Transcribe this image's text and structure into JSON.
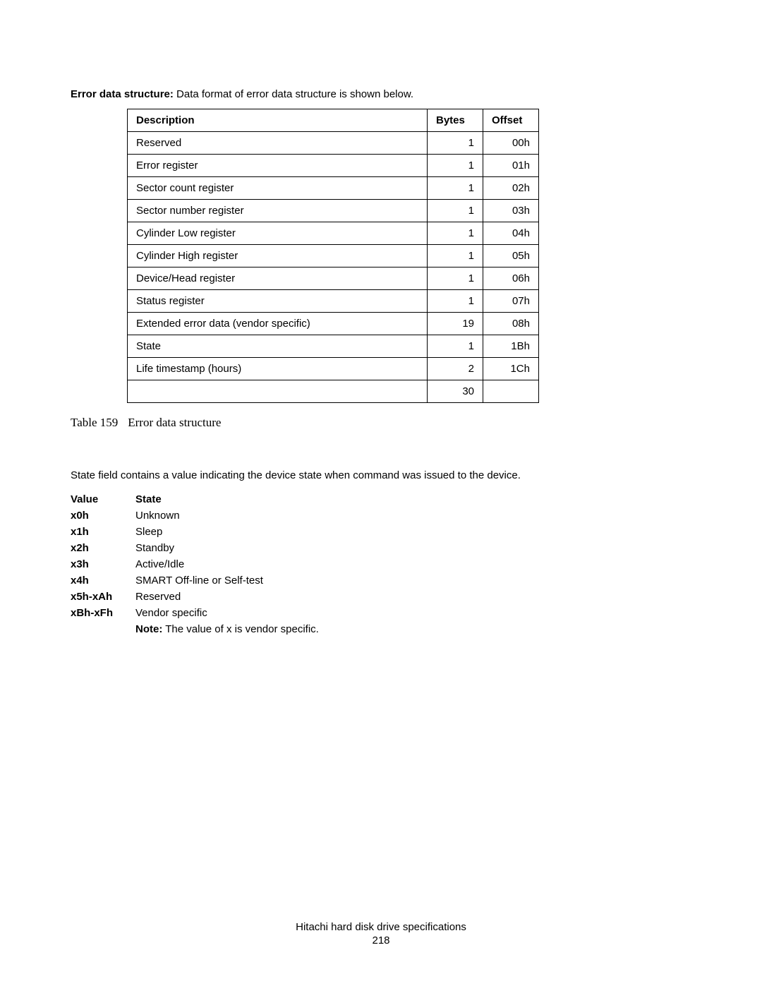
{
  "intro": {
    "label": "Error data structure:",
    "text": " Data format of error data structure is shown below."
  },
  "table": {
    "headers": {
      "desc": "Description",
      "bytes": "Bytes",
      "offset": "Offset"
    },
    "rows": [
      {
        "desc": "Reserved",
        "bytes": "1",
        "offset": "00h"
      },
      {
        "desc": "Error register",
        "bytes": "1",
        "offset": "01h"
      },
      {
        "desc": "Sector count register",
        "bytes": "1",
        "offset": "02h"
      },
      {
        "desc": "Sector number register",
        "bytes": "1",
        "offset": "03h"
      },
      {
        "desc": "Cylinder Low register",
        "bytes": "1",
        "offset": "04h"
      },
      {
        "desc": "Cylinder High register",
        "bytes": "1",
        "offset": "05h"
      },
      {
        "desc": "Device/Head register",
        "bytes": "1",
        "offset": "06h"
      },
      {
        "desc": "Status register",
        "bytes": "1",
        "offset": "07h"
      },
      {
        "desc": "Extended error data (vendor specific)",
        "bytes": "19",
        "offset": "08h"
      },
      {
        "desc": "State",
        "bytes": "1",
        "offset": "1Bh"
      },
      {
        "desc": "Life timestamp (hours)",
        "bytes": "2",
        "offset": "1Ch"
      },
      {
        "desc": "",
        "bytes": "30",
        "offset": ""
      }
    ]
  },
  "caption": {
    "num": "Table 159",
    "text": "Error data structure"
  },
  "stateintro": "State field contains a value indicating the device state when command was issued to the device.",
  "states": {
    "header": {
      "value": "Value",
      "state": "State"
    },
    "rows": [
      {
        "value": "x0h",
        "state": "Unknown"
      },
      {
        "value": "x1h",
        "state": "Sleep"
      },
      {
        "value": "x2h",
        "state": "Standby"
      },
      {
        "value": "x3h",
        "state": "Active/Idle"
      },
      {
        "value": "x4h",
        "state": "SMART Off-line or Self-test"
      },
      {
        "value": "x5h-xAh",
        "state": "Reserved"
      },
      {
        "value": "xBh-xFh",
        "state": "Vendor specific"
      }
    ],
    "note_label": "Note:",
    "note_text": " The value of x is vendor specific."
  },
  "footer": {
    "title": "Hitachi hard disk drive specifications",
    "page": "218"
  }
}
